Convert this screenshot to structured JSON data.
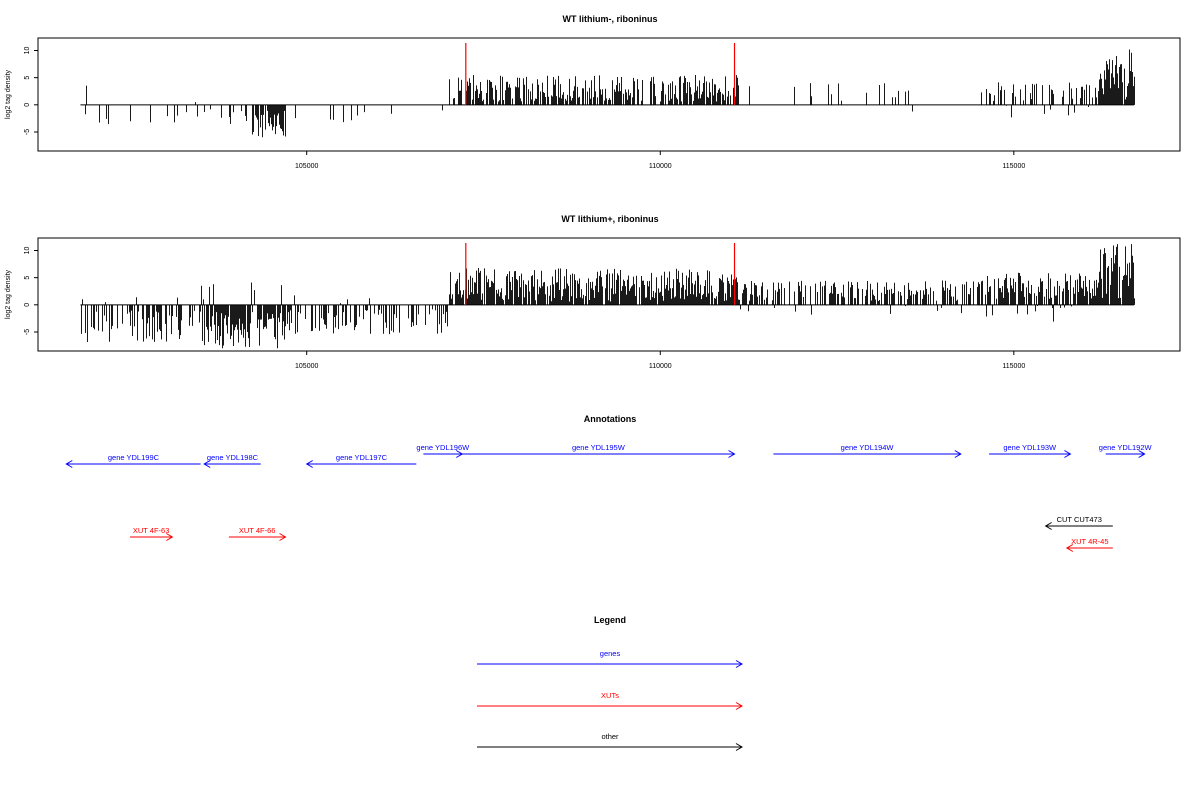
{
  "colors": {
    "gene": "#0000ff",
    "xut": "#ff0000",
    "other": "#000000",
    "marker": "#ff0000",
    "bar": "#000000"
  },
  "chart_data": [
    {
      "type": "bar",
      "title": "WT lithium-, riboninus",
      "ylabel": "log2 tag density",
      "xlim": [
        101200,
        117350
      ],
      "ylim": [
        -8.5,
        12.3
      ],
      "xticks": [
        105000,
        110000,
        115000
      ],
      "xtick_labels": [
        "105000",
        "110000",
        "115000"
      ],
      "yticks": [
        -5,
        0,
        5,
        10
      ],
      "ytick_labels": [
        "-5",
        "0",
        "5",
        "10"
      ],
      "x_start": 101800,
      "x_end": 116700,
      "markers": [
        107250,
        111050
      ],
      "segments": [
        {
          "from": 101800,
          "to": 104200,
          "density": 0.12,
          "min": -3.8,
          "max": 3.6,
          "sign": -1
        },
        {
          "from": 104200,
          "to": 104700,
          "density": 0.9,
          "min": -6,
          "max": -1,
          "sign": -1
        },
        {
          "from": 104700,
          "to": 107000,
          "density": 0.05,
          "min": -3.5,
          "max": -1,
          "sign": -1
        },
        {
          "from": 107000,
          "to": 111100,
          "density": 0.7,
          "min": 0.6,
          "max": 5.5,
          "sign": 1
        },
        {
          "from": 111100,
          "to": 114600,
          "density": 0.07,
          "min": -2,
          "max": 4,
          "sign": 1
        },
        {
          "from": 114600,
          "to": 116200,
          "density": 0.4,
          "min": -3,
          "max": 4.2,
          "sign": 1
        },
        {
          "from": 116200,
          "to": 116700,
          "density": 0.9,
          "min": 1,
          "max": 11,
          "sign": 1
        }
      ]
    },
    {
      "type": "bar",
      "title": "WT lithium+, riboninus",
      "ylabel": "log2 tag density",
      "xlim": [
        101200,
        117350
      ],
      "ylim": [
        -8.5,
        12.3
      ],
      "xticks": [
        105000,
        110000,
        115000
      ],
      "xtick_labels": [
        "105000",
        "110000",
        "115000"
      ],
      "yticks": [
        -5,
        0,
        5,
        10
      ],
      "ytick_labels": [
        "-5",
        "0",
        "5",
        "10"
      ],
      "x_start": 101800,
      "x_end": 116700,
      "markers": [
        107250,
        111050
      ],
      "segments": [
        {
          "from": 101800,
          "to": 103500,
          "density": 0.5,
          "min": -7,
          "max": 3,
          "sign": -1
        },
        {
          "from": 103500,
          "to": 104700,
          "density": 0.9,
          "min": -8,
          "max": 5,
          "sign": -1
        },
        {
          "from": 104700,
          "to": 107000,
          "density": 0.5,
          "min": -5.5,
          "max": 2,
          "sign": -1
        },
        {
          "from": 107000,
          "to": 111100,
          "density": 0.9,
          "min": 0.6,
          "max": 6.8,
          "sign": 1
        },
        {
          "from": 111100,
          "to": 114600,
          "density": 0.6,
          "min": -2,
          "max": 4.5,
          "sign": 1
        },
        {
          "from": 114600,
          "to": 116200,
          "density": 0.85,
          "min": -3.2,
          "max": 6,
          "sign": 1
        },
        {
          "from": 116200,
          "to": 116700,
          "density": 0.95,
          "min": 1,
          "max": 12,
          "sign": 1
        }
      ]
    }
  ],
  "annotations": {
    "title": "Annotations",
    "genes": [
      {
        "label": "gene YDL199C",
        "from": 101600,
        "to": 103500,
        "dir": "left",
        "row": 1
      },
      {
        "label": "gene YDL198C",
        "from": 103550,
        "to": 104350,
        "dir": "left",
        "row": 1
      },
      {
        "label": "gene YDL197C",
        "from": 105000,
        "to": 106550,
        "dir": "left",
        "row": 1
      },
      {
        "label": "gene YDL196W",
        "from": 106650,
        "to": 107200,
        "dir": "right",
        "row": 0
      },
      {
        "label": "gene YDL195W",
        "from": 107200,
        "to": 111050,
        "dir": "right",
        "row": 0
      },
      {
        "label": "gene YDL194W",
        "from": 111600,
        "to": 114250,
        "dir": "right",
        "row": 0
      },
      {
        "label": "gene YDL193W",
        "from": 114650,
        "to": 115800,
        "dir": "right",
        "row": 0
      },
      {
        "label": "gene YDL192W",
        "from": 116300,
        "to": 116850,
        "dir": "right",
        "row": 0
      }
    ],
    "xuts": [
      {
        "label": "XUT 4F-63",
        "from": 102500,
        "to": 103100,
        "dir": "right",
        "row": 0
      },
      {
        "label": "XUT 4F-66",
        "from": 103900,
        "to": 104700,
        "dir": "right",
        "row": 0
      },
      {
        "label": "XUT 4R-45",
        "from": 115750,
        "to": 116400,
        "dir": "left",
        "row": 1
      }
    ],
    "others": [
      {
        "label": "CUT CUT473",
        "from": 115450,
        "to": 116400,
        "dir": "left",
        "row": 0
      }
    ]
  },
  "legend": {
    "title": "Legend",
    "items": [
      {
        "label": "genes",
        "kind": "gene"
      },
      {
        "label": "XUTs",
        "kind": "xut"
      },
      {
        "label": "other",
        "kind": "other"
      }
    ]
  }
}
